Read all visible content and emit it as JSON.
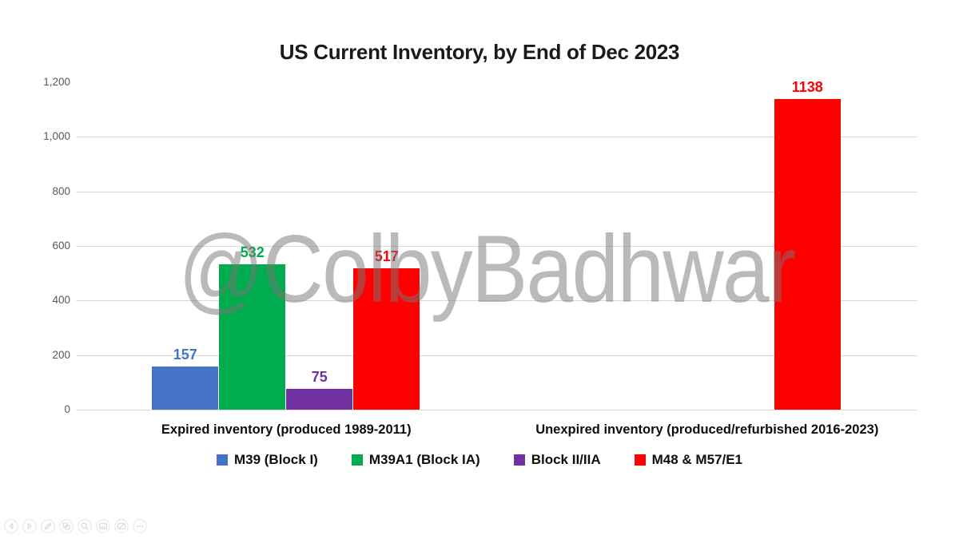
{
  "title": "US Current Inventory, by End of Dec 2023",
  "watermark": "@ColbyBadhwar",
  "chart_data": {
    "type": "bar",
    "title": "US Current Inventory, by End of Dec 2023",
    "categories": [
      "Expired inventory (produced 1989-2011)",
      "Unexpired inventory (produced/refurbished 2016-2023)"
    ],
    "series": [
      {
        "name": "M39 (Block I)",
        "color": "#4472C4",
        "values": [
          157,
          null
        ]
      },
      {
        "name": "M39A1 (Block IA)",
        "color": "#00AC4E",
        "values": [
          532,
          null
        ]
      },
      {
        "name": "Block II/IIA",
        "color": "#7030A0",
        "values": [
          75,
          null
        ]
      },
      {
        "name": "M48 & M57/E1",
        "color": "#FF0000",
        "values": [
          517,
          1138
        ]
      }
    ],
    "ylim": [
      0,
      1200
    ],
    "yticks": [
      {
        "value": 1200,
        "label": "1,200",
        "grid": false
      },
      {
        "value": 1000,
        "label": "1,000",
        "grid": true
      },
      {
        "value": 800,
        "label": "800",
        "grid": true
      },
      {
        "value": 600,
        "label": "600",
        "grid": true
      },
      {
        "value": 400,
        "label": "400",
        "grid": true
      },
      {
        "value": 200,
        "label": "200",
        "grid": true
      },
      {
        "value": 0,
        "label": "0",
        "grid": true
      }
    ],
    "grid": true,
    "legend_position": "bottom",
    "data_label_color": "series",
    "gridline_color": "#d9d9d9"
  },
  "toolbar": {
    "icons": [
      {
        "name": "prev-icon"
      },
      {
        "name": "next-icon"
      },
      {
        "name": "draw-icon"
      },
      {
        "name": "collage-icon"
      },
      {
        "name": "zoom-icon"
      },
      {
        "name": "card-icon"
      },
      {
        "name": "hide-image-icon"
      },
      {
        "name": "more-icon"
      }
    ]
  }
}
